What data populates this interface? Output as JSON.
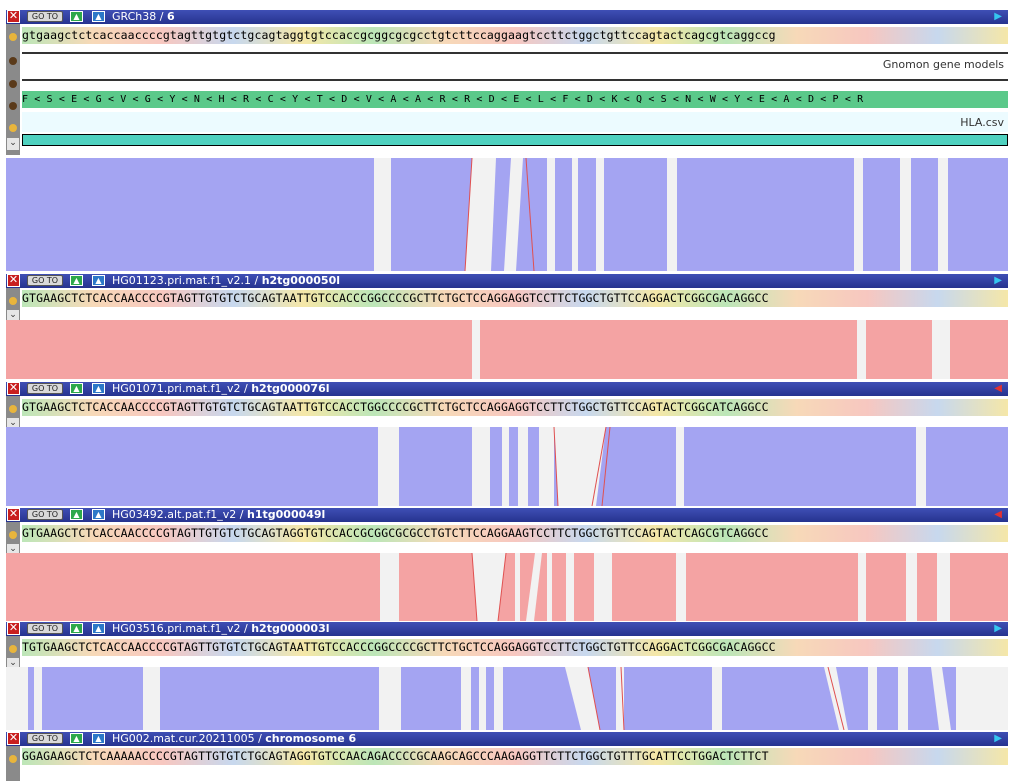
{
  "rows": [
    {
      "title": "GRCh38",
      "subtitle": "6",
      "arrow": "▶",
      "arrow_color": "#35c6f0"
    },
    {
      "title": "HG01123.pri.mat.f1_v2.1",
      "subtitle": "h2tg000050l",
      "arrow": "▶",
      "arrow_color": "#35c6f0"
    },
    {
      "title": "HG01071.pri.mat.f1_v2",
      "subtitle": "h2tg000076l",
      "arrow": "◀",
      "arrow_color": "#e23131"
    },
    {
      "title": "HG03492.alt.pat.f1_v2",
      "subtitle": "h1tg000049l",
      "arrow": "◀",
      "arrow_color": "#e23131"
    },
    {
      "title": "HG03516.pri.mat.f1_v2",
      "subtitle": "h2tg000003l",
      "arrow": "▶",
      "arrow_color": "#35c6f0"
    },
    {
      "title": "HG002.mat.cur.20211005",
      "subtitle": "chromosome 6",
      "arrow": "▶",
      "arrow_color": "#35c6f0"
    }
  ],
  "controls": {
    "goto": "GO TO",
    "close": "✕",
    "up": "▲"
  },
  "sequences": {
    "ref": "gtgaagctctcaccaaccccgtagttgtgtctgcagtaggtgtccaccgcggcgcgcctgtcttccaggaagtccttctggctgttccagtactcagcgtcaggccg",
    "s1": "GTGAAGCTCTCACCAACCCCGTAGTTGTGTCTGCAGTAATTGTCCACCCGGCCCCGCTTCTGCTCCAGGAGGTCCTTCTGGCTGTTCCAGGACTCGGCGACAGGCC",
    "s2": "GTGAAGCTCTCACCAACCCCGTAGTTGTGTCTGCAGTAATTGTCCACCTGGCCCCGCTTCTGCTCCAGGAGGTCCTTCTGGCTGTTCCAGTACTCGGCATCAGGCC",
    "s3": "GTGAAGCTCTCACCAACCCCGTAGTTGTGTCTGCAGTAGGTGTCCACCGCGGCGCGCCTGTCTTCCAGGAAGTCCTTCTGGCTGTTCCAGTACTCAGCGTCAGGCC",
    "s4": "TGTGAAGCTCTCACCAACCCCGTAGTTGTGTCTGCAGTAATTGTCCACCCGGCCCCGCTTCTGCTCCAGGAGGTCCTTCTGGCTGTTCCAGGACTCGGCGACAGGCC",
    "s5": "GGAGAAGCTCTCAAAAACCCCGTAGTTGTGTCTGCAGTAGGTGTCCAACAGACCCCGCAAGCAGCCCAAGAGGTTCTTCTGGCTGTTTGCATTCCTGGACTCTTCT"
  },
  "tracks": {
    "gnomon_label": "Gnomon gene models",
    "hla_label": "HLA.csv",
    "protein": "F < S < E < G < V < G < Y < N < H < R < C < Y < T < D < V < A < A < R < R < D < E < L < F < D < K < Q < S < N < W < Y < E < A < D < P < R"
  }
}
